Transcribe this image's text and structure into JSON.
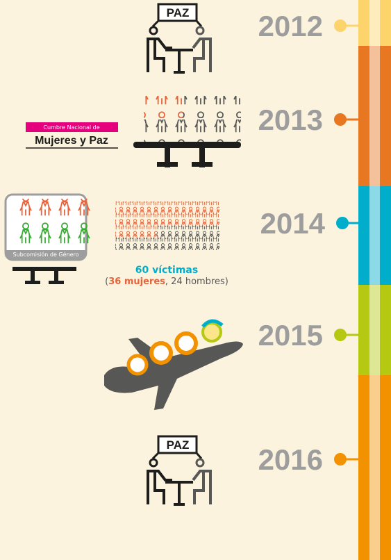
{
  "timeline": {
    "entries": [
      {
        "year": "2012",
        "sign": "PAZ"
      },
      {
        "year": "2013",
        "label_top": "Cumbre Nacional de",
        "label_main": "Mujeres y Paz"
      },
      {
        "year": "2014",
        "box_label": "Subcomisión de Género",
        "victims": "60 víctimas",
        "open": "(",
        "women": "36 mujeres",
        "men": ", 24 hombres)"
      },
      {
        "year": "2015"
      },
      {
        "year": "2016",
        "sign": "PAZ"
      }
    ]
  }
}
